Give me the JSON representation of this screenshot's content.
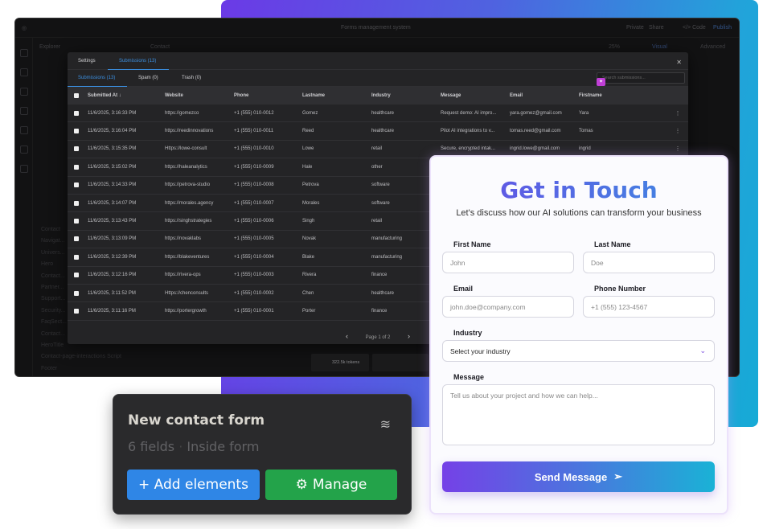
{
  "app": {
    "title": "Forms management system",
    "private": "Private",
    "share": "Share",
    "code": "</> Code",
    "publish": "Publish",
    "explorer": "Explorer",
    "file_tab": "Contact",
    "zoom": "25%",
    "visual": "Visual",
    "advanced": "Advanced",
    "tokens": "322.5k tokens",
    "tree": [
      "Contact",
      "Navigat...",
      "Univers...",
      "Hero",
      "Contact...",
      "Partner...",
      "Support...",
      "Security...",
      "FaqSect...",
      "Contact...",
      "HeroTitle",
      "Contact-page-interactions Script",
      "Footer"
    ]
  },
  "modal": {
    "tabs": [
      "Settings",
      "Submissions (13)"
    ],
    "subtabs": [
      "Submissions (13)",
      "Spam (0)",
      "Trash (0)"
    ],
    "search_placeholder": "Search submissions...",
    "columns": [
      "Submitted At ↓",
      "Website",
      "Phone",
      "Lastname",
      "Industry",
      "Message",
      "Email",
      "Firstname"
    ],
    "rows": [
      [
        "11/6/2025, 3:16:33 PM",
        "https://gomezco",
        "+1 (555) 010-0012",
        "Gomez",
        "healthcare",
        "Request demo: AI impro...",
        "yara.gomez@gmail.com",
        "Yara"
      ],
      [
        "11/6/2025, 3:16:04 PM",
        "https://reedinnovations",
        "+1 (555) 010-0011",
        "Reed",
        "healthcare",
        "Pilot AI integrations to v...",
        "tomas.reed@gmail.com",
        "Tomas"
      ],
      [
        "11/6/2025, 3:15:35 PM",
        "Https://lowe-consult",
        "+1 (555) 010-0010",
        "Lowe",
        "retail",
        "Secure, encrypted intak...",
        "ingrid.lowe@gmail.com",
        "ingrid"
      ],
      [
        "11/6/2025, 3:15:02 PM",
        "https://haleanalytics",
        "+1 (555) 010-0009",
        "Hale",
        "other"
      ],
      [
        "11/6/2025, 3:14:33 PM",
        "https://petrova-studio",
        "+1 (555) 010-0008",
        "Petrova",
        "software"
      ],
      [
        "11/6/2025, 3:14:07 PM",
        "https://morales.agency",
        "+1 (555) 010-0007",
        "Morales",
        "software"
      ],
      [
        "11/6/2025, 3:13:43 PM",
        "https://singhstrategies",
        "+1 (555) 010-0006",
        "Singh",
        "retail"
      ],
      [
        "11/6/2025, 3:13:09 PM",
        "https://novaklabs",
        "+1 (555) 010-0005",
        "Novak",
        "manufacturing"
      ],
      [
        "11/6/2025, 3:12:39 PM",
        "https://blakeventures",
        "+1 (555) 010-0004",
        "Blake",
        "manufacturing"
      ],
      [
        "11/6/2025, 3:12:16 PM",
        "https://rivera-ops",
        "+1 (555) 010-0003",
        "Rivera",
        "finance"
      ],
      [
        "11/6/2025, 3:11:52 PM",
        "Https://chenconsults",
        "+1 (555) 010-0002",
        "Chen",
        "healthcare"
      ],
      [
        "11/6/2025, 3:11:16 PM",
        "https://portergrowth",
        "+1 (555) 010-0001",
        "Porter",
        "finance"
      ]
    ],
    "page": "Page 1 of 2"
  },
  "card": {
    "title": "New contact form",
    "fields": "6 fields",
    "location": "Inside form",
    "add": "+ Add elements",
    "manage": "Manage"
  },
  "form": {
    "title": "Get in Touch",
    "subtitle": "Let's discuss how our AI solutions can transform your business",
    "first_name": {
      "label": "First Name",
      "placeholder": "John"
    },
    "last_name": {
      "label": "Last Name",
      "placeholder": "Doe"
    },
    "email": {
      "label": "Email",
      "placeholder": "john.doe@company.com"
    },
    "phone": {
      "label": "Phone Number",
      "placeholder": "+1 (555) 123-4567"
    },
    "industry": {
      "label": "Industry",
      "value": "Select your industry"
    },
    "message": {
      "label": "Message",
      "placeholder": "Tell us about your project and how we can help..."
    },
    "send": "Send Message"
  },
  "colors": {
    "accent": "#3b8fe0",
    "add_button": "#2f86e6",
    "manage_button": "#23a34a",
    "gradient_start": "#7541e7",
    "gradient_end": "#1ab2d6"
  }
}
